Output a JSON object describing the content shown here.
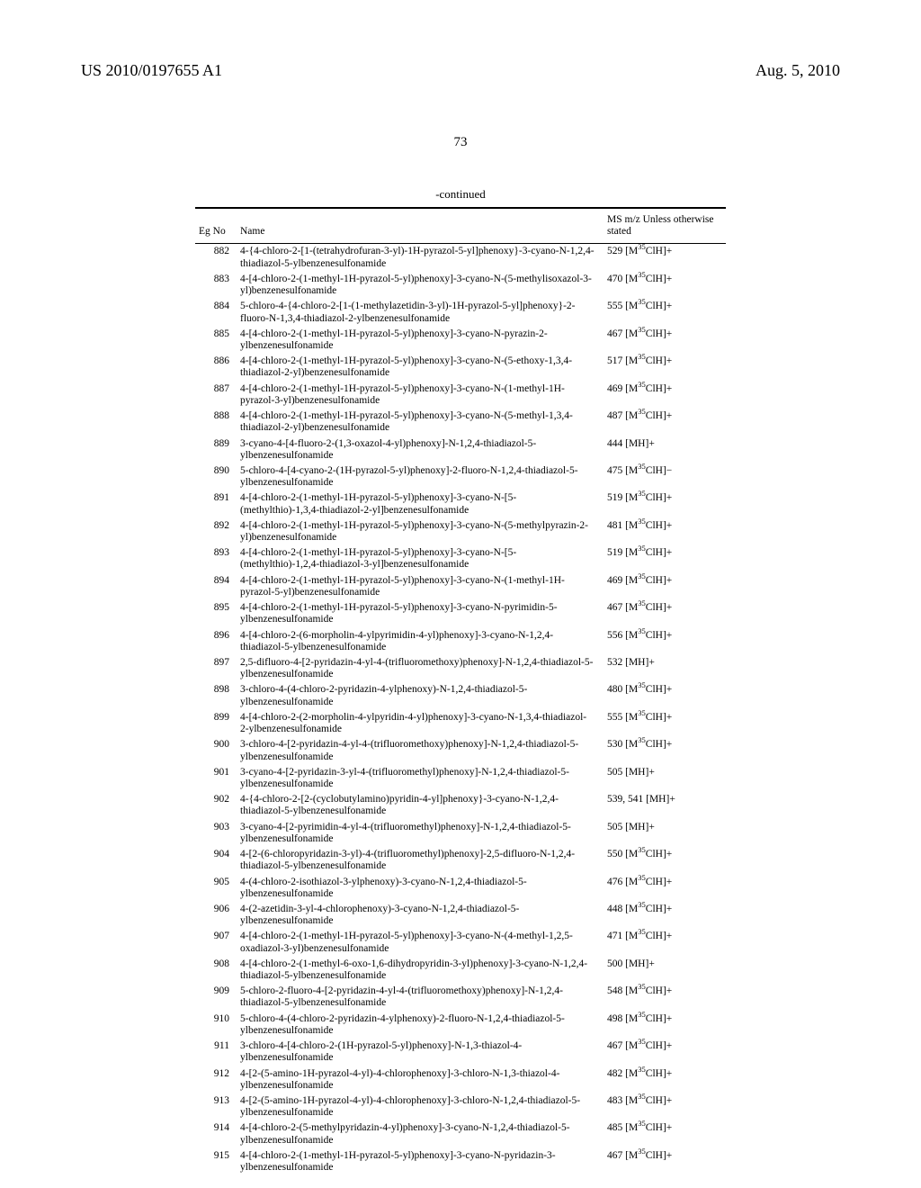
{
  "header": {
    "doc_number": "US 2010/0197655 A1",
    "date": "Aug. 5, 2010",
    "page_number": "73",
    "continued": "-continued"
  },
  "table": {
    "columns": {
      "eg": "Eg\nNo",
      "name": "Name",
      "ms": "MS m/z\nUnless otherwise\nstated"
    },
    "rows": [
      {
        "eg": "882",
        "name": "4-{4-chloro-2-[1-(tetrahydrofuran-3-yl)-1H-pyrazol-5-yl]phenoxy}-3-cyano-N-1,2,4-thiadiazol-5-ylbenzenesulfonamide",
        "ms": "529 [M³⁵ClH]+"
      },
      {
        "eg": "883",
        "name": "4-[4-chloro-2-(1-methyl-1H-pyrazol-5-yl)phenoxy]-3-cyano-N-(5-methylisoxazol-3-yl)benzenesulfonamide",
        "ms": "470 [M³⁵ClH]+"
      },
      {
        "eg": "884",
        "name": "5-chloro-4-{4-chloro-2-[1-(1-methylazetidin-3-yl)-1H-pyrazol-5-yl]phenoxy}-2-fluoro-N-1,3,4-thiadiazol-2-ylbenzenesulfonamide",
        "ms": "555 [M³⁵ClH]+"
      },
      {
        "eg": "885",
        "name": "4-[4-chloro-2-(1-methyl-1H-pyrazol-5-yl)phenoxy]-3-cyano-N-pyrazin-2-ylbenzenesulfonamide",
        "ms": "467 [M³⁵ClH]+"
      },
      {
        "eg": "886",
        "name": "4-[4-chloro-2-(1-methyl-1H-pyrazol-5-yl)phenoxy]-3-cyano-N-(5-ethoxy-1,3,4-thiadiazol-2-yl)benzenesulfonamide",
        "ms": "517 [M³⁵ClH]+"
      },
      {
        "eg": "887",
        "name": "4-[4-chloro-2-(1-methyl-1H-pyrazol-5-yl)phenoxy]-3-cyano-N-(1-methyl-1H-pyrazol-3-yl)benzenesulfonamide",
        "ms": "469 [M³⁵ClH]+"
      },
      {
        "eg": "888",
        "name": "4-[4-chloro-2-(1-methyl-1H-pyrazol-5-yl)phenoxy]-3-cyano-N-(5-methyl-1,3,4-thiadiazol-2-yl)benzenesulfonamide",
        "ms": "487 [M³⁵ClH]+"
      },
      {
        "eg": "889",
        "name": "3-cyano-4-[4-fluoro-2-(1,3-oxazol-4-yl)phenoxy]-N-1,2,4-thiadiazol-5-ylbenzenesulfonamide",
        "ms": "444 [MH]+"
      },
      {
        "eg": "890",
        "name": "5-chloro-4-[4-cyano-2-(1H-pyrazol-5-yl)phenoxy]-2-fluoro-N-1,2,4-thiadiazol-5-ylbenzenesulfonamide",
        "ms": "475 [M³⁵ClH]−"
      },
      {
        "eg": "891",
        "name": "4-[4-chloro-2-(1-methyl-1H-pyrazol-5-yl)phenoxy]-3-cyano-N-[5-(methylthio)-1,3,4-thiadiazol-2-yl]benzenesulfonamide",
        "ms": "519 [M³⁵ClH]+"
      },
      {
        "eg": "892",
        "name": "4-[4-chloro-2-(1-methyl-1H-pyrazol-5-yl)phenoxy]-3-cyano-N-(5-methylpyrazin-2-yl)benzenesulfonamide",
        "ms": "481 [M³⁵ClH]+"
      },
      {
        "eg": "893",
        "name": "4-[4-chloro-2-(1-methyl-1H-pyrazol-5-yl)phenoxy]-3-cyano-N-[5-(methylthio)-1,2,4-thiadiazol-3-yl]benzenesulfonamide",
        "ms": "519 [M³⁵ClH]+"
      },
      {
        "eg": "894",
        "name": "4-[4-chloro-2-(1-methyl-1H-pyrazol-5-yl)phenoxy]-3-cyano-N-(1-methyl-1H-pyrazol-5-yl)benzenesulfonamide",
        "ms": "469 [M³⁵ClH]+"
      },
      {
        "eg": "895",
        "name": "4-[4-chloro-2-(1-methyl-1H-pyrazol-5-yl)phenoxy]-3-cyano-N-pyrimidin-5-ylbenzenesulfonamide",
        "ms": "467 [M³⁵ClH]+"
      },
      {
        "eg": "896",
        "name": "4-[4-chloro-2-(6-morpholin-4-ylpyrimidin-4-yl)phenoxy]-3-cyano-N-1,2,4-thiadiazol-5-ylbenzenesulfonamide",
        "ms": "556 [M³⁵ClH]+"
      },
      {
        "eg": "897",
        "name": "2,5-difluoro-4-[2-pyridazin-4-yl-4-(trifluoromethoxy)phenoxy]-N-1,2,4-thiadiazol-5-ylbenzenesulfonamide",
        "ms": "532 [MH]+"
      },
      {
        "eg": "898",
        "name": "3-chloro-4-(4-chloro-2-pyridazin-4-ylphenoxy)-N-1,2,4-thiadiazol-5-ylbenzenesulfonamide",
        "ms": "480 [M³⁵ClH]+"
      },
      {
        "eg": "899",
        "name": "4-[4-chloro-2-(2-morpholin-4-ylpyridin-4-yl)phenoxy]-3-cyano-N-1,3,4-thiadiazol-2-ylbenzenesulfonamide",
        "ms": "555 [M³⁵ClH]+"
      },
      {
        "eg": "900",
        "name": "3-chloro-4-[2-pyridazin-4-yl-4-(trifluoromethoxy)phenoxy]-N-1,2,4-thiadiazol-5-ylbenzenesulfonamide",
        "ms": "530 [M³⁵ClH]+"
      },
      {
        "eg": "901",
        "name": "3-cyano-4-[2-pyridazin-3-yl-4-(trifluoromethyl)phenoxy]-N-1,2,4-thiadiazol-5-ylbenzenesulfonamide",
        "ms": "505 [MH]+"
      },
      {
        "eg": "902",
        "name": "4-{4-chloro-2-[2-(cyclobutylamino)pyridin-4-yl]phenoxy}-3-cyano-N-1,2,4-thiadiazol-5-ylbenzenesulfonamide",
        "ms": "539, 541 [MH]+"
      },
      {
        "eg": "903",
        "name": "3-cyano-4-[2-pyrimidin-4-yl-4-(trifluoromethyl)phenoxy]-N-1,2,4-thiadiazol-5-ylbenzenesulfonamide",
        "ms": "505 [MH]+"
      },
      {
        "eg": "904",
        "name": "4-[2-(6-chloropyridazin-3-yl)-4-(trifluoromethyl)phenoxy]-2,5-difluoro-N-1,2,4-thiadiazol-5-ylbenzenesulfonamide",
        "ms": "550 [M³⁵ClH]+"
      },
      {
        "eg": "905",
        "name": "4-(4-chloro-2-isothiazol-3-ylphenoxy)-3-cyano-N-1,2,4-thiadiazol-5-ylbenzenesulfonamide",
        "ms": "476 [M³⁵ClH]+"
      },
      {
        "eg": "906",
        "name": "4-(2-azetidin-3-yl-4-chlorophenoxy)-3-cyano-N-1,2,4-thiadiazol-5-ylbenzenesulfonamide",
        "ms": "448 [M³⁵ClH]+"
      },
      {
        "eg": "907",
        "name": "4-[4-chloro-2-(1-methyl-1H-pyrazol-5-yl)phenoxy]-3-cyano-N-(4-methyl-1,2,5-oxadiazol-3-yl)benzenesulfonamide",
        "ms": "471 [M³⁵ClH]+"
      },
      {
        "eg": "908",
        "name": "4-[4-chloro-2-(1-methyl-6-oxo-1,6-dihydropyridin-3-yl)phenoxy]-3-cyano-N-1,2,4-thiadiazol-5-ylbenzenesulfonamide",
        "ms": "500 [MH]+"
      },
      {
        "eg": "909",
        "name": "5-chloro-2-fluoro-4-[2-pyridazin-4-yl-4-(trifluoromethoxy)phenoxy]-N-1,2,4-thiadiazol-5-ylbenzenesulfonamide",
        "ms": "548 [M³⁵ClH]+"
      },
      {
        "eg": "910",
        "name": "5-chloro-4-(4-chloro-2-pyridazin-4-ylphenoxy)-2-fluoro-N-1,2,4-thiadiazol-5-ylbenzenesulfonamide",
        "ms": "498 [M³⁵ClH]+"
      },
      {
        "eg": "911",
        "name": "3-chloro-4-[4-chloro-2-(1H-pyrazol-5-yl)phenoxy]-N-1,3-thiazol-4-ylbenzenesulfonamide",
        "ms": "467 [M³⁵ClH]+"
      },
      {
        "eg": "912",
        "name": "4-[2-(5-amino-1H-pyrazol-4-yl)-4-chlorophenoxy]-3-chloro-N-1,3-thiazol-4-ylbenzenesulfonamide",
        "ms": "482 [M³⁵ClH]+"
      },
      {
        "eg": "913",
        "name": "4-[2-(5-amino-1H-pyrazol-4-yl)-4-chlorophenoxy]-3-chloro-N-1,2,4-thiadiazol-5-ylbenzenesulfonamide",
        "ms": "483 [M³⁵ClH]+"
      },
      {
        "eg": "914",
        "name": "4-[4-chloro-2-(5-methylpyridazin-4-yl)phenoxy]-3-cyano-N-1,2,4-thiadiazol-5-ylbenzenesulfonamide",
        "ms": "485 [M³⁵ClH]+"
      },
      {
        "eg": "915",
        "name": "4-[4-chloro-2-(1-methyl-1H-pyrazol-5-yl)phenoxy]-3-cyano-N-pyridazin-3-ylbenzenesulfonamide",
        "ms": "467 [M³⁵ClH]+"
      }
    ]
  }
}
